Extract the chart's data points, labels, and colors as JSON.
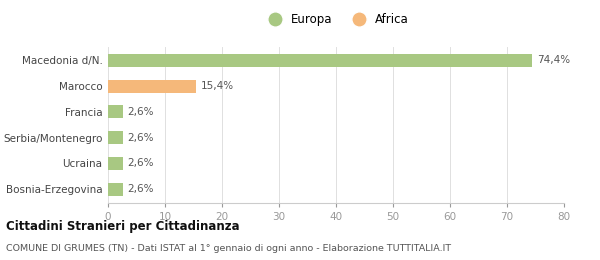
{
  "categories": [
    "Bosnia-Erzegovina",
    "Ucraina",
    "Serbia/Montenegro",
    "Francia",
    "Marocco",
    "Macedonia d/N."
  ],
  "values": [
    2.6,
    2.6,
    2.6,
    2.6,
    15.4,
    74.4
  ],
  "labels": [
    "2,6%",
    "2,6%",
    "2,6%",
    "2,6%",
    "15,4%",
    "74,4%"
  ],
  "colors": [
    "#a8c882",
    "#a8c882",
    "#a8c882",
    "#a8c882",
    "#f5b87a",
    "#a8c882"
  ],
  "legend": [
    {
      "label": "Europa",
      "color": "#a8c882"
    },
    {
      "label": "Africa",
      "color": "#f5b87a"
    }
  ],
  "xlim": [
    0,
    80
  ],
  "xticks": [
    0,
    10,
    20,
    30,
    40,
    50,
    60,
    70,
    80
  ],
  "title_main": "Cittadini Stranieri per Cittadinanza",
  "title_sub": "COMUNE DI GRUMES (TN) - Dati ISTAT al 1° gennaio di ogni anno - Elaborazione TUTTITALIA.IT",
  "background_color": "#ffffff",
  "bar_height": 0.5
}
